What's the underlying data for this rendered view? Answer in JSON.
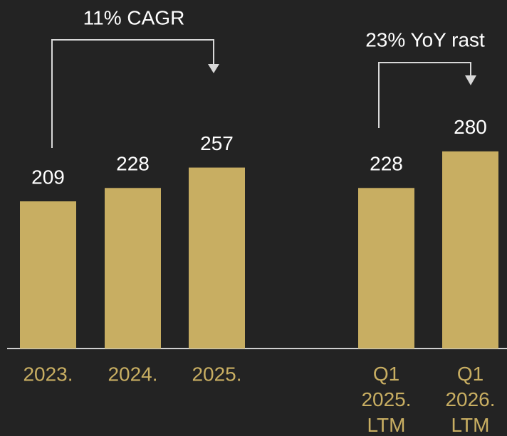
{
  "chart_data": {
    "type": "bar",
    "categories": [
      "2023.",
      "2024.",
      "2025.",
      "Q1 2025. LTM",
      "Q1 2026. LTM"
    ],
    "values": [
      209,
      228,
      257,
      228,
      280
    ],
    "color": "#c8ae62",
    "annotations": [
      "11% CAGR",
      "23% YoY rast"
    ]
  }
}
